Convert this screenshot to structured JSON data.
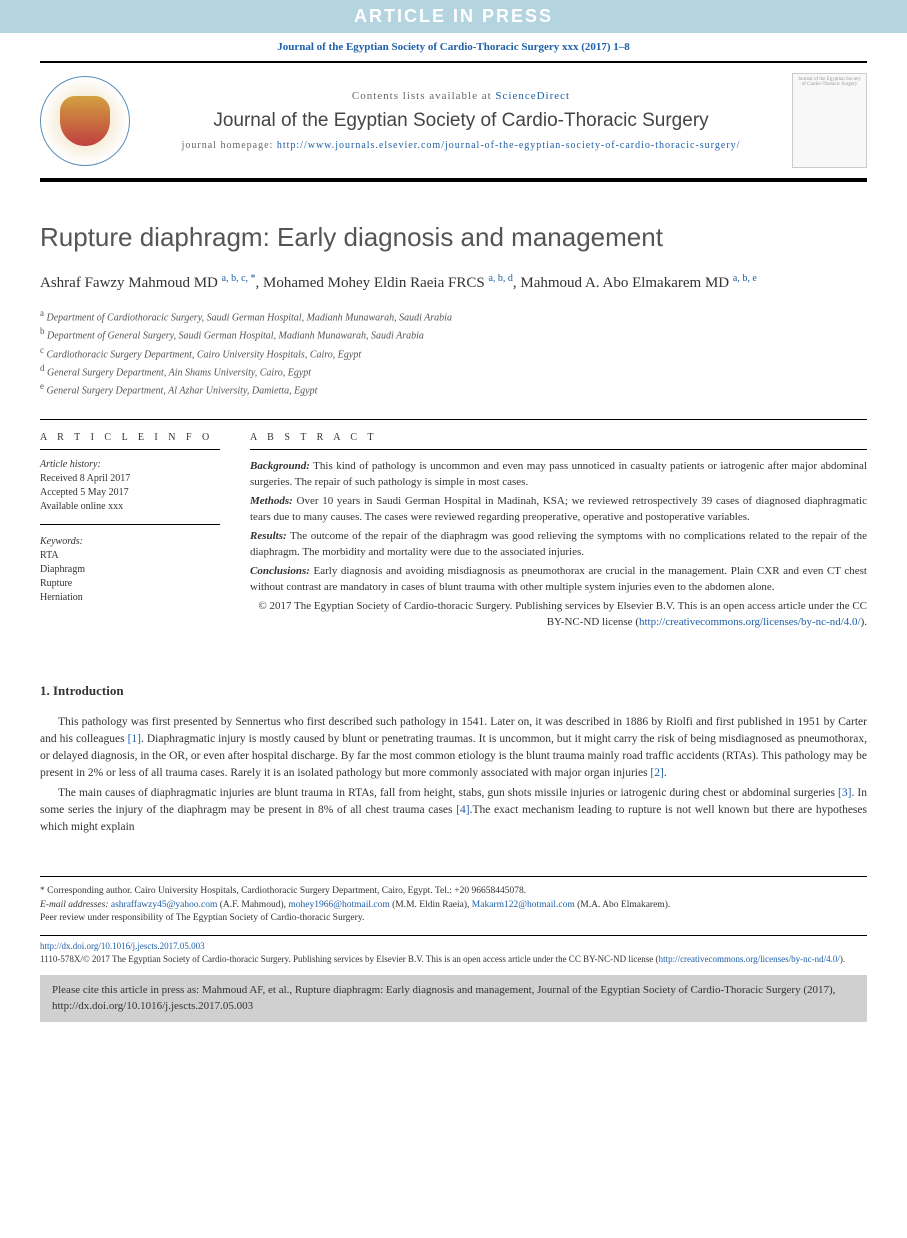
{
  "banner": {
    "text": "ARTICLE IN PRESS",
    "background_color": "#b4d4e0",
    "text_color": "#ffffff"
  },
  "citation_line": "Journal of the Egyptian Society of Cardio-Thoracic Surgery xxx (2017) 1–8",
  "header": {
    "contents_prefix": "Contents lists available at ",
    "contents_link": "ScienceDirect",
    "journal_name": "Journal of the Egyptian Society of Cardio-Thoracic Surgery",
    "homepage_label": "journal homepage: ",
    "homepage_url": "http://www.journals.elsevier.com/journal-of-the-egyptian-society-of-cardio-thoracic-surgery/",
    "cover_text": "Journal of the Egyptian Society of Cardio-Thoracic Surgery"
  },
  "article": {
    "title": "Rupture diaphragm: Early diagnosis and management",
    "authors_html": "Ashraf Fawzy Mahmoud MD <sup>a, b, c, *</sup>, Mohamed Mohey Eldin Raeia FRCS <sup>a, b, d</sup>, Mahmoud A. Abo Elmakarem MD <sup>a, b, e</sup>",
    "affiliations": [
      {
        "sup": "a",
        "text": "Department of Cardiothoracic Surgery, Saudi German Hospital, Madianh Munawarah, Saudi Arabia"
      },
      {
        "sup": "b",
        "text": "Department of General Surgery, Saudi German Hospital, Madianh Munawarah, Saudi Arabia"
      },
      {
        "sup": "c",
        "text": "Cardiothoracic Surgery Department, Cairo University Hospitals, Cairo, Egypt"
      },
      {
        "sup": "d",
        "text": "General Surgery Department, Ain Shams University, Cairo, Egypt"
      },
      {
        "sup": "e",
        "text": "General Surgery Department, Al Azhar University, Damietta, Egypt"
      }
    ]
  },
  "info": {
    "heading": "A R T I C L E   I N F O",
    "history_label": "Article history:",
    "received": "Received 8 April 2017",
    "accepted": "Accepted 5 May 2017",
    "available": "Available online xxx",
    "keywords_label": "Keywords:",
    "keywords": [
      "RTA",
      "Diaphragm",
      "Rupture",
      "Herniation"
    ]
  },
  "abstract": {
    "heading": "A B S T R A C T",
    "background_label": "Background:",
    "background": " This kind of pathology is uncommon and even may pass unnoticed in casualty patients or iatrogenic after major abdominal surgeries. The repair of such pathology is simple in most cases.",
    "methods_label": "Methods:",
    "methods": " Over 10 years in Saudi German Hospital in Madinah, KSA; we reviewed retrospectively 39 cases of diagnosed diaphragmatic tears due to many causes. The cases were reviewed regarding preoperative, operative and postoperative variables.",
    "results_label": "Results:",
    "results": " The outcome of the repair of the diaphragm was good relieving the symptoms with no complications related to the repair of the diaphragm. The morbidity and mortality were due to the associated injuries.",
    "conclusions_label": "Conclusions:",
    "conclusions": " Early diagnosis and avoiding misdiagnosis as pneumothorax are crucial in the management. Plain CXR and even CT chest without contrast are mandatory in cases of blunt trauma with other multiple system injuries even to the abdomen alone.",
    "copyright": "© 2017 The Egyptian Society of Cardio-thoracic Surgery. Publishing services by Elsevier B.V. This is an open access article under the CC BY-NC-ND license (",
    "license_url": "http://creativecommons.org/licenses/by-nc-nd/4.0/",
    "copyright_close": ")."
  },
  "intro": {
    "heading": "1. Introduction",
    "p1_a": "This pathology was first presented by Sennertus who first described such pathology in 1541. Later on, it was described in 1886 by Riolfi and first published in 1951 by Carter and his colleagues ",
    "p1_ref1": "[1]",
    "p1_b": ". Diaphragmatic injury is mostly caused by blunt or penetrating traumas. It is uncommon, but it might carry the risk of being misdiagnosed as pneumothorax, or delayed diagnosis, in the OR, or even after hospital discharge. By far the most common etiology is the blunt trauma mainly road traffic accidents (RTAs). This pathology may be present in 2% or less of all trauma cases. Rarely it is an isolated pathology but more commonly associated with major organ injuries ",
    "p1_ref2": "[2]",
    "p1_c": ".",
    "p2_a": "The main causes of diaphragmatic injuries are blunt trauma in RTAs, fall from height, stabs, gun shots missile injuries or iatrogenic during chest or abdominal surgeries ",
    "p2_ref3": "[3]",
    "p2_b": ". In some series the injury of the diaphragm may be present in 8% of all chest trauma cases ",
    "p2_ref4": "[4]",
    "p2_c": ".The exact mechanism leading to rupture is not well known but there are hypotheses which might explain"
  },
  "footer": {
    "corr_label": "* Corresponding author. ",
    "corr_text": "Cairo University Hospitals, Cardiothoracic Surgery Department, Cairo, Egypt. Tel.: +20 96658445078.",
    "email_label": "E-mail addresses: ",
    "email1": "ashraffawzy45@yahoo.com",
    "email1_who": " (A.F. Mahmoud), ",
    "email2": "mohey1966@hotmail.com",
    "email2_who": " (M.M. Eldin Raeia), ",
    "email3": "Makarm122@hotmail.com",
    "email3_who": " (M.A. Abo Elmakarem).",
    "peer": "Peer review under responsibility of The Egyptian Society of Cardio-thoracic Surgery."
  },
  "doi": {
    "url": "http://dx.doi.org/10.1016/j.jescts.2017.05.003",
    "issn_line": "1110-578X/© 2017 The Egyptian Society of Cardio-thoracic Surgery. Publishing services by Elsevier B.V. This is an open access article under the CC BY-NC-ND license (",
    "license_url": "http://creativecommons.org/licenses/by-nc-nd/4.0/",
    "close": ")."
  },
  "citebox": {
    "text": "Please cite this article in press as: Mahmoud AF, et al., Rupture diaphragm: Early diagnosis and management, Journal of the Egyptian Society of Cardio-Thoracic Surgery (2017), http://dx.doi.org/10.1016/j.jescts.2017.05.003"
  },
  "colors": {
    "link": "#2060a8",
    "banner_bg": "#b4d4e0",
    "citebox_bg": "#d0d0d0"
  }
}
